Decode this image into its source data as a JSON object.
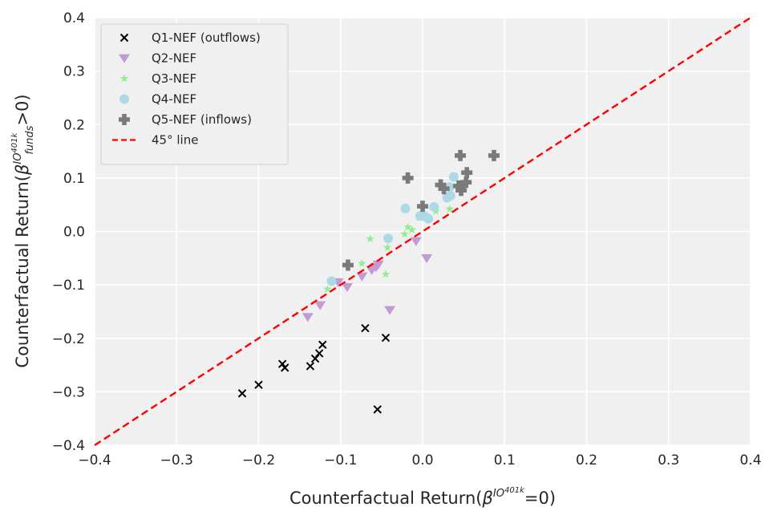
{
  "chart_data": {
    "type": "scatter",
    "title": "",
    "xlabel": {
      "prefix": "Counterfactual Return(",
      "beta": "β",
      "sup": "IO",
      "subsup": "401k",
      "suffix": "=0)"
    },
    "ylabel": {
      "prefix": "Counterfactual Return(",
      "beta": "β",
      "sup": "IO",
      "subsup": "401k",
      "sub": "funds",
      "suffix": ">0)"
    },
    "xlim": [
      -0.4,
      0.4
    ],
    "ylim": [
      -0.4,
      0.4
    ],
    "xticks": [
      -0.4,
      -0.3,
      -0.2,
      -0.1,
      0.0,
      0.1,
      0.2,
      0.3,
      0.4
    ],
    "xtick_labels": [
      "−0.4",
      "−0.3",
      "−0.2",
      "−0.1",
      "0.0",
      "0.1",
      "0.2",
      "0.3",
      "0.4"
    ],
    "yticks": [
      -0.4,
      -0.3,
      -0.2,
      -0.1,
      0.0,
      0.1,
      0.2,
      0.3,
      0.4
    ],
    "ytick_labels": [
      "−0.4",
      "−0.3",
      "−0.2",
      "−0.1",
      "0.0",
      "0.1",
      "0.2",
      "0.3",
      "0.4"
    ],
    "grid": true,
    "background": "#f0f0f0",
    "legend_position": "top-left",
    "series": [
      {
        "name": "Q1-NEF (outflows)",
        "marker": "x",
        "color": "#000000",
        "points": [
          [
            -0.22,
            -0.303
          ],
          [
            -0.2,
            -0.287
          ],
          [
            -0.171,
            -0.248
          ],
          [
            -0.168,
            -0.255
          ],
          [
            -0.137,
            -0.252
          ],
          [
            -0.131,
            -0.238
          ],
          [
            -0.126,
            -0.228
          ],
          [
            -0.122,
            -0.212
          ],
          [
            -0.07,
            -0.181
          ],
          [
            -0.045,
            -0.199
          ],
          [
            -0.055,
            -0.333
          ]
        ]
      },
      {
        "name": "Q2-NEF",
        "marker": "triangle-down",
        "color": "#c39bd3",
        "points": [
          [
            -0.14,
            -0.16
          ],
          [
            -0.125,
            -0.138
          ],
          [
            -0.103,
            -0.095
          ],
          [
            -0.092,
            -0.104
          ],
          [
            -0.074,
            -0.084
          ],
          [
            -0.062,
            -0.072
          ],
          [
            -0.057,
            -0.067
          ],
          [
            -0.054,
            -0.062
          ],
          [
            -0.04,
            -0.147
          ],
          [
            -0.008,
            -0.018
          ],
          [
            0.005,
            -0.05
          ]
        ]
      },
      {
        "name": "Q3-NEF",
        "marker": "star",
        "color": "#90ee90",
        "points": [
          [
            -0.116,
            -0.108
          ],
          [
            -0.074,
            -0.06
          ],
          [
            -0.064,
            -0.014
          ],
          [
            -0.043,
            -0.03
          ],
          [
            -0.045,
            -0.08
          ],
          [
            -0.022,
            -0.005
          ],
          [
            -0.018,
            0.008
          ],
          [
            -0.013,
            0.003
          ],
          [
            -0.004,
            0.026
          ],
          [
            0.016,
            0.038
          ],
          [
            0.033,
            0.042
          ]
        ]
      },
      {
        "name": "Q4-NEF",
        "marker": "circle",
        "color": "#add8e6",
        "points": [
          [
            -0.111,
            -0.093
          ],
          [
            -0.042,
            -0.013
          ],
          [
            -0.021,
            0.043
          ],
          [
            -0.003,
            0.029
          ],
          [
            0.003,
            0.028
          ],
          [
            0.007,
            0.024
          ],
          [
            0.014,
            0.046
          ],
          [
            0.03,
            0.063
          ],
          [
            0.033,
            0.083
          ],
          [
            0.034,
            0.067
          ],
          [
            0.038,
            0.102
          ]
        ]
      },
      {
        "name": "Q5-NEF (inflows)",
        "marker": "plus",
        "color": "#7a7a7a",
        "points": [
          [
            -0.091,
            -0.063
          ],
          [
            -0.018,
            0.1
          ],
          [
            0.0,
            0.047
          ],
          [
            0.022,
            0.087
          ],
          [
            0.026,
            0.08
          ],
          [
            0.044,
            0.085
          ],
          [
            0.046,
            0.142
          ],
          [
            0.047,
            0.077
          ],
          [
            0.053,
            0.092
          ],
          [
            0.054,
            0.11
          ],
          [
            0.087,
            0.142
          ]
        ]
      },
      {
        "name": "45° line",
        "marker": "dashed-line",
        "color": "#ff0000",
        "points": [
          [
            -0.4,
            -0.4
          ],
          [
            0.4,
            0.4
          ]
        ]
      }
    ]
  }
}
